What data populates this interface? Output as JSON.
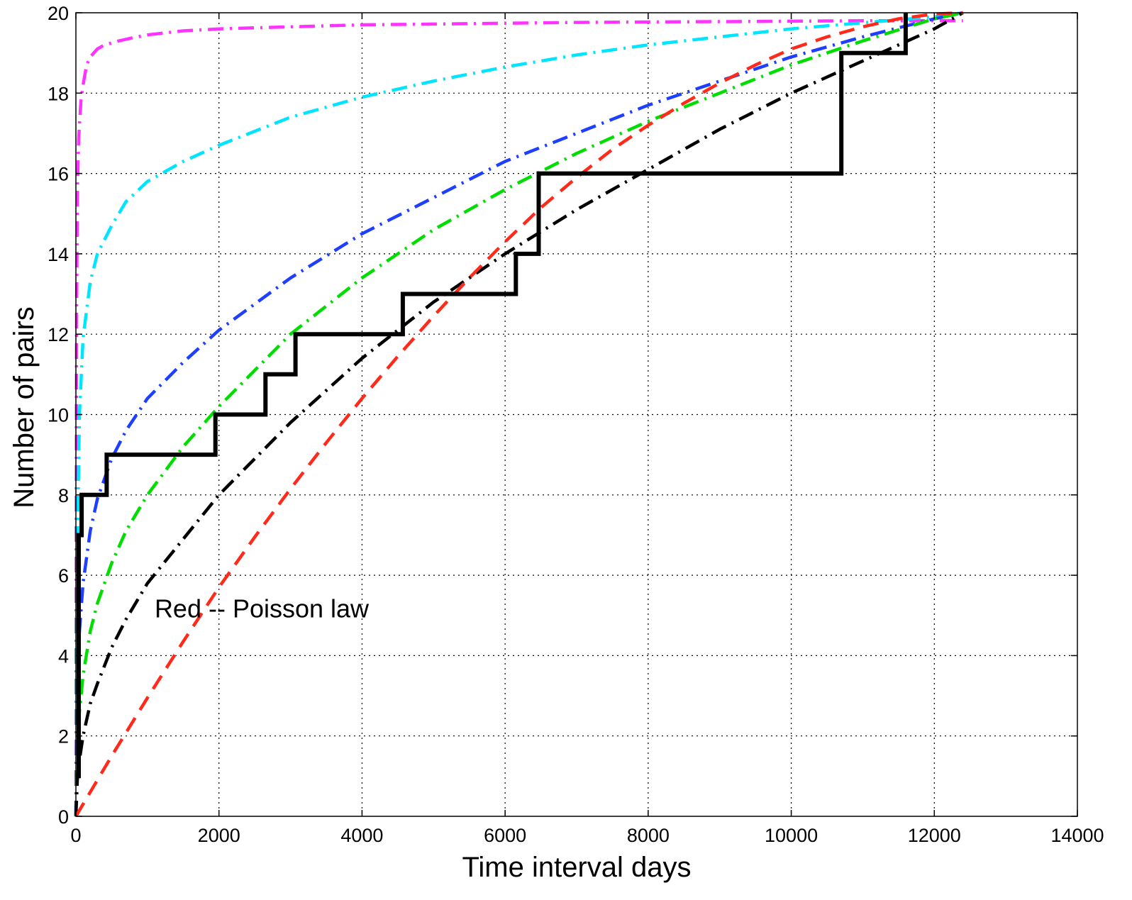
{
  "chart_data": {
    "type": "line",
    "title": "",
    "xlabel": "Time interval days",
    "ylabel": "Number of pairs",
    "xlim": [
      0,
      14000
    ],
    "ylim": [
      0,
      20
    ],
    "xticks": [
      0,
      2000,
      4000,
      6000,
      8000,
      10000,
      12000,
      14000
    ],
    "yticks": [
      0,
      2,
      4,
      6,
      8,
      10,
      12,
      14,
      16,
      18,
      20
    ],
    "grid": true,
    "annotation": "Red -- Poisson law",
    "series": [
      {
        "style": "dash-dot",
        "color": "#ff33ff",
        "x": [
          0,
          5,
          10,
          20,
          40,
          70,
          100,
          150,
          200,
          300,
          400,
          600,
          800,
          1000,
          1500,
          2000,
          3000,
          4000,
          5000,
          6000,
          7000,
          8000,
          9000,
          10000,
          11000,
          12000,
          12400
        ],
        "y": [
          0,
          7.5,
          12.5,
          15.5,
          16.9,
          17.8,
          18.2,
          18.7,
          18.9,
          19.1,
          19.2,
          19.3,
          19.38,
          19.45,
          19.55,
          19.6,
          19.65,
          19.7,
          19.72,
          19.74,
          19.76,
          19.77,
          19.78,
          19.79,
          19.8,
          19.8,
          19.8
        ]
      },
      {
        "style": "dash-dot",
        "color": "#00e5ff",
        "x": [
          0,
          20,
          50,
          100,
          200,
          300,
          500,
          700,
          1000,
          1500,
          2000,
          3000,
          4000,
          5000,
          6000,
          7000,
          8000,
          9000,
          10000,
          11000,
          12000,
          12400
        ],
        "y": [
          0,
          6.5,
          10.0,
          11.9,
          13.3,
          14.0,
          14.7,
          15.3,
          15.8,
          16.3,
          16.7,
          17.4,
          17.9,
          18.3,
          18.65,
          18.95,
          19.2,
          19.4,
          19.6,
          19.75,
          19.9,
          20.0
        ]
      },
      {
        "style": "dash-dot",
        "color": "#1f3fff",
        "x": [
          0,
          20,
          50,
          100,
          200,
          300,
          500,
          700,
          1000,
          1500,
          2000,
          3000,
          4000,
          5000,
          6000,
          7000,
          8000,
          9000,
          10000,
          11000,
          12000,
          12400
        ],
        "y": [
          0,
          3.0,
          4.6,
          5.8,
          7.1,
          7.9,
          8.9,
          9.6,
          10.4,
          11.3,
          12.1,
          13.4,
          14.5,
          15.4,
          16.3,
          17.0,
          17.7,
          18.3,
          18.9,
          19.4,
          19.85,
          20.0
        ]
      },
      {
        "style": "dash-dot",
        "color": "#00dd00",
        "x": [
          0,
          20,
          50,
          100,
          200,
          300,
          500,
          700,
          1000,
          1500,
          2000,
          3000,
          4000,
          5000,
          6000,
          7000,
          8000,
          9000,
          10000,
          11000,
          12000,
          12400
        ],
        "y": [
          0,
          1.6,
          2.6,
          3.5,
          4.6,
          5.3,
          6.3,
          7.1,
          8.0,
          9.2,
          10.2,
          12.0,
          13.4,
          14.6,
          15.6,
          16.5,
          17.3,
          18.0,
          18.7,
          19.3,
          19.85,
          20.0
        ]
      },
      {
        "style": "dash-dot",
        "color": "#000000",
        "x": [
          0,
          20,
          50,
          100,
          200,
          300,
          500,
          700,
          1000,
          1500,
          2000,
          3000,
          4000,
          5000,
          6000,
          7000,
          8000,
          9000,
          10000,
          11000,
          12000,
          12400
        ],
        "y": [
          0,
          0.9,
          1.4,
          2.0,
          2.8,
          3.3,
          4.2,
          4.9,
          5.8,
          6.9,
          8.0,
          9.8,
          11.4,
          12.8,
          14.0,
          15.1,
          16.1,
          17.1,
          18.0,
          18.8,
          19.6,
          20.0
        ]
      },
      {
        "style": "dashed",
        "color": "#ff2a1a",
        "x": [
          0,
          500,
          1000,
          1500,
          2000,
          2500,
          3000,
          3500,
          4000,
          4500,
          5000,
          5500,
          6000,
          6500,
          7000,
          7500,
          8000,
          8500,
          9000,
          9500,
          10000,
          10500,
          11000,
          11500,
          12000,
          12400
        ],
        "y": [
          0,
          1.5,
          2.95,
          4.35,
          5.7,
          6.95,
          8.15,
          9.3,
          10.4,
          11.45,
          12.45,
          13.4,
          14.3,
          15.15,
          15.9,
          16.6,
          17.2,
          17.75,
          18.25,
          18.7,
          19.1,
          19.4,
          19.65,
          19.85,
          19.97,
          20.0
        ]
      },
      {
        "style": "step",
        "color": "#000000",
        "x": [
          0,
          40,
          40,
          80,
          80,
          430,
          430,
          1950,
          1950,
          2650,
          2650,
          3070,
          3070,
          4570,
          4570,
          6150,
          6150,
          6470,
          6470,
          10700,
          10700,
          11600,
          11600
        ],
        "y": [
          1,
          1,
          7,
          7,
          8,
          8,
          9,
          9,
          10,
          10,
          11,
          11,
          12,
          12,
          13,
          13,
          14,
          14,
          16,
          16,
          19,
          19,
          20
        ]
      }
    ]
  }
}
